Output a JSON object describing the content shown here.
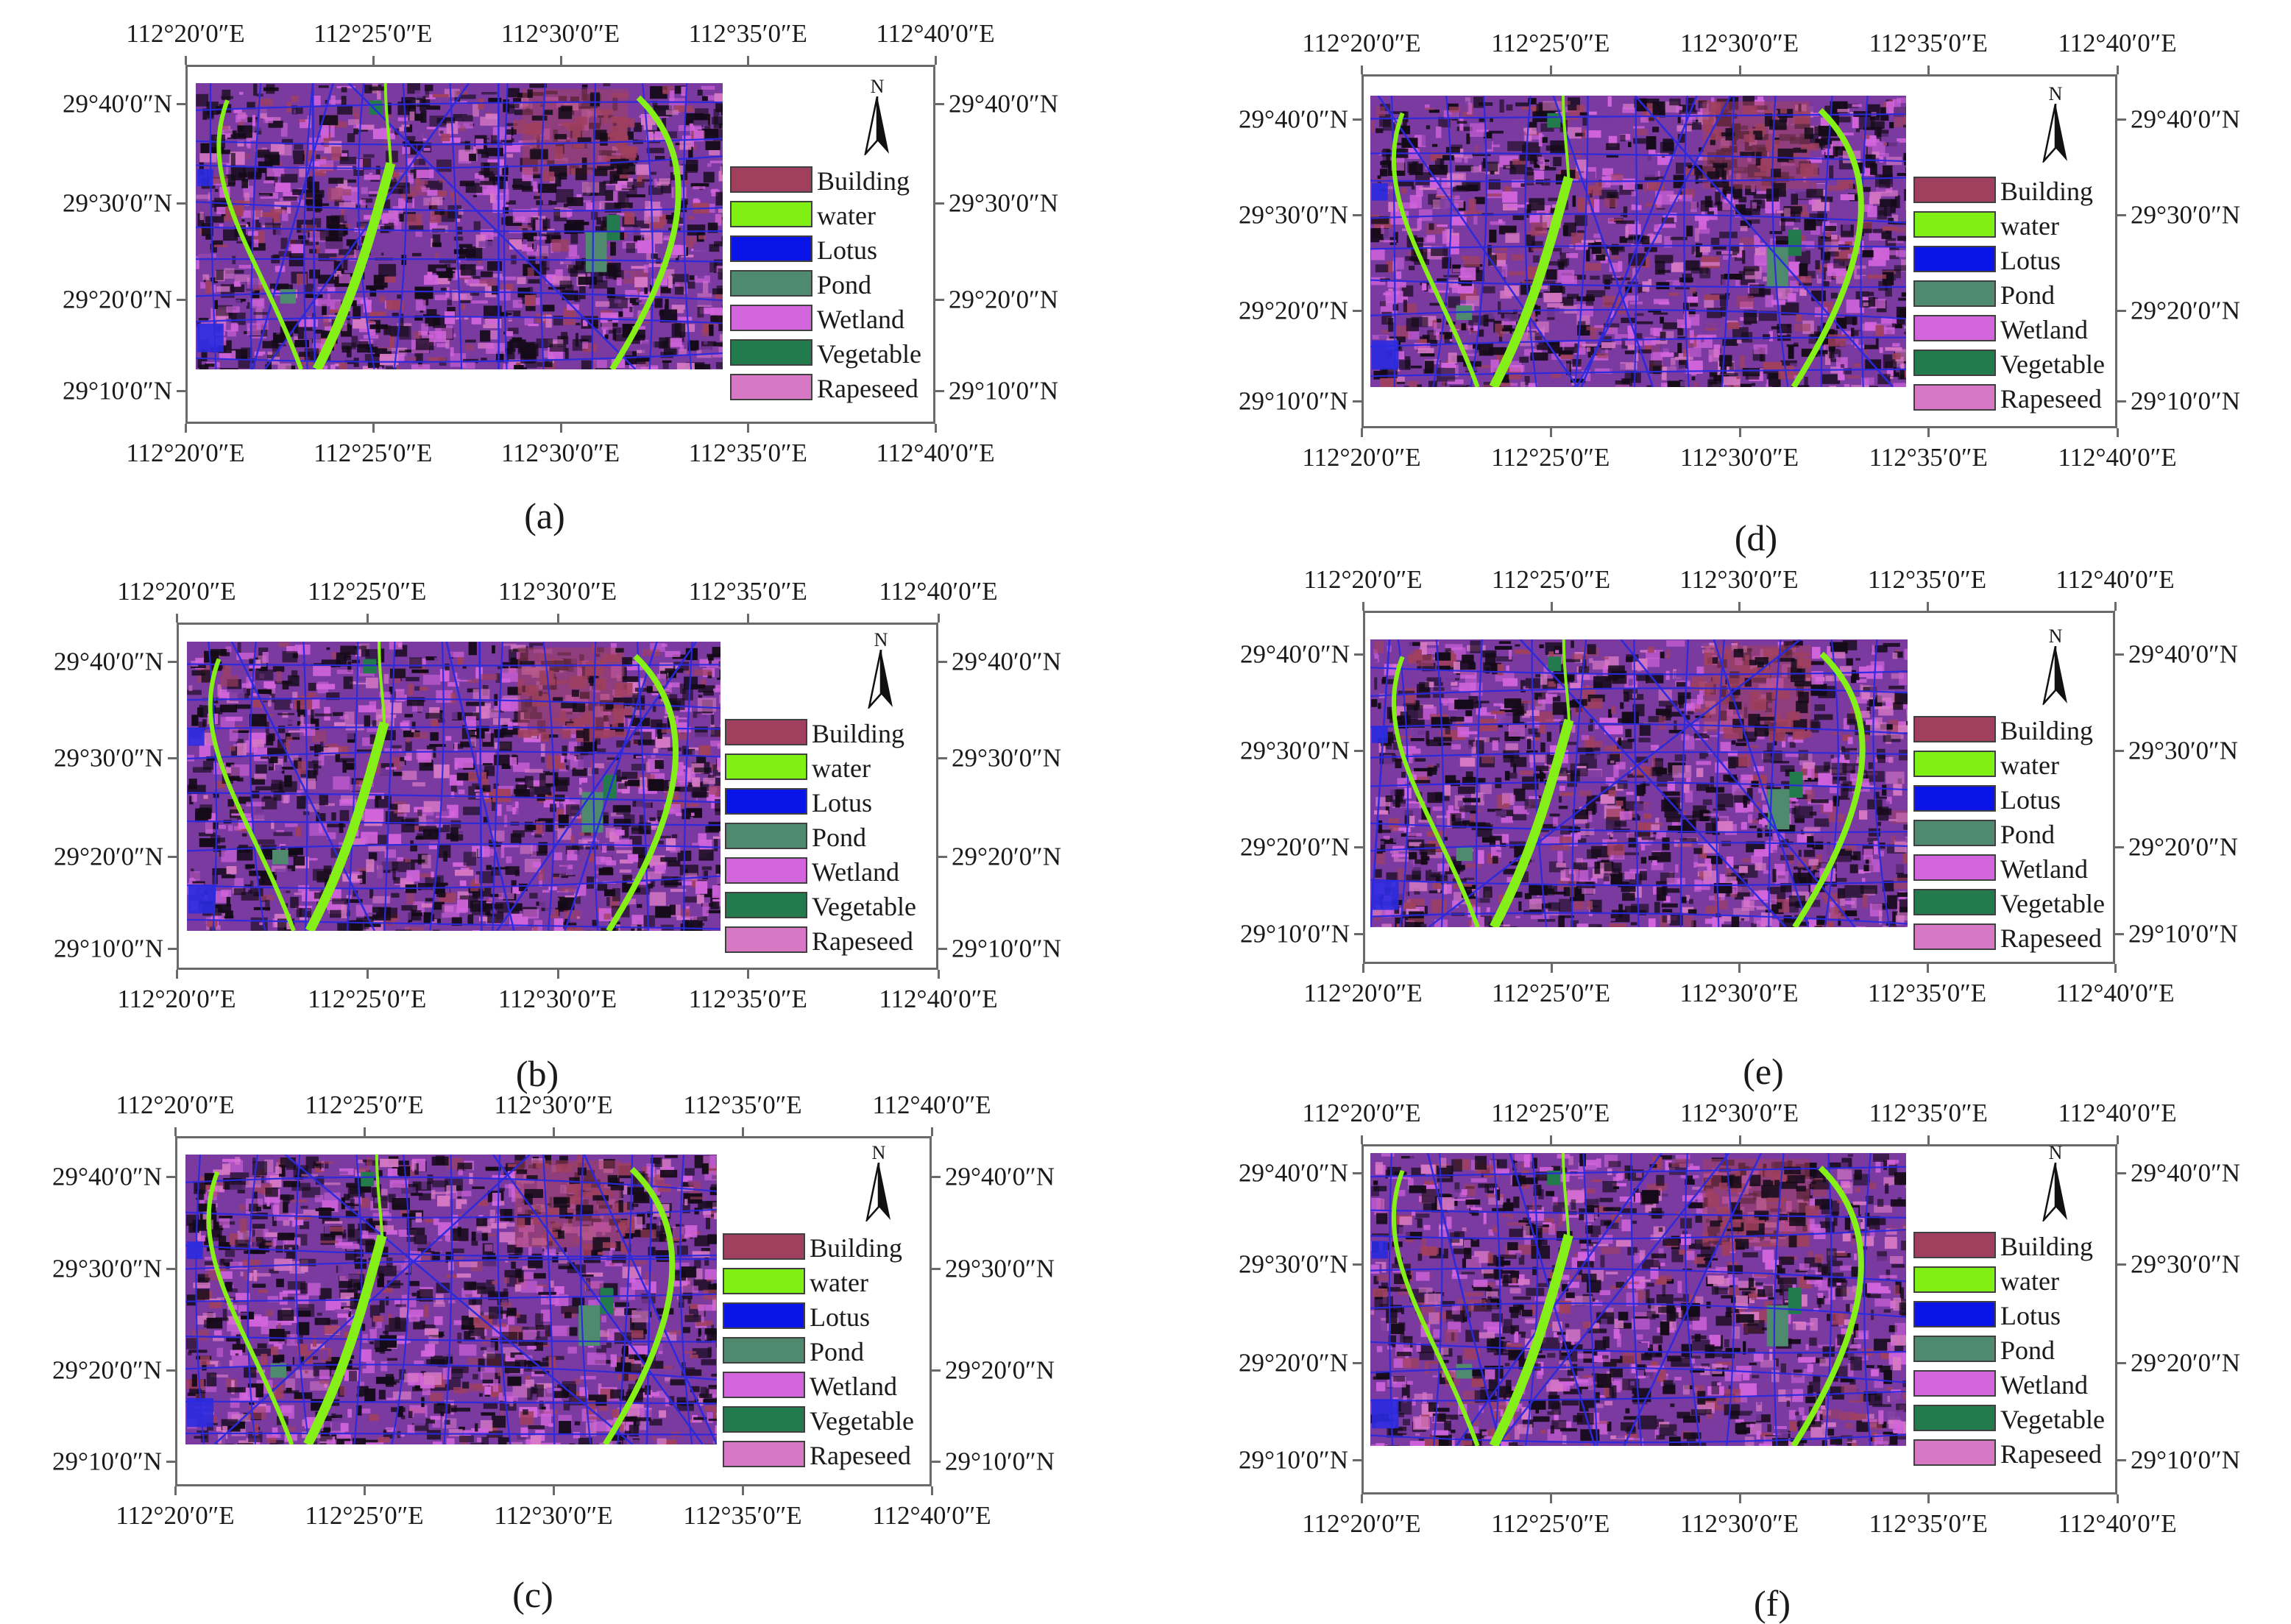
{
  "figure": {
    "lon_labels": [
      "112°20′0″E",
      "112°25′0″E",
      "112°30′0″E",
      "112°35′0″E",
      "112°40′0″E"
    ],
    "lat_labels": [
      "29°40′0″N",
      "29°30′0″N",
      "29°20′0″N",
      "29°10′0″N"
    ],
    "north_label": "N",
    "legend": [
      {
        "label": "Building",
        "color": "#a0405e"
      },
      {
        "label": "water",
        "color": "#80ef14"
      },
      {
        "label": "Lotus",
        "color": "#0a14e6"
      },
      {
        "label": "Pond",
        "color": "#4f8a6f"
      },
      {
        "label": "Wetland",
        "color": "#d264dc"
      },
      {
        "label": "Vegetable",
        "color": "#237a4c"
      },
      {
        "label": "Rapeseed",
        "color": "#d678c4"
      }
    ],
    "map_colors": {
      "base": "#7a3aa0",
      "dark": "#140a18",
      "road": "#2a2ae0",
      "river": "#84f018",
      "building": "#a0405e",
      "wetland": "#d264dc",
      "rapeseed": "#d678c4",
      "pond": "#4f8a6f",
      "vegetable": "#237a4c"
    },
    "panels": [
      {
        "id": "a",
        "caption": "(a)"
      },
      {
        "id": "b",
        "caption": "(b)"
      },
      {
        "id": "c",
        "caption": "(c)"
      },
      {
        "id": "d",
        "caption": "(d)"
      },
      {
        "id": "e",
        "caption": "(e)"
      },
      {
        "id": "f",
        "caption": "(f)"
      }
    ]
  }
}
